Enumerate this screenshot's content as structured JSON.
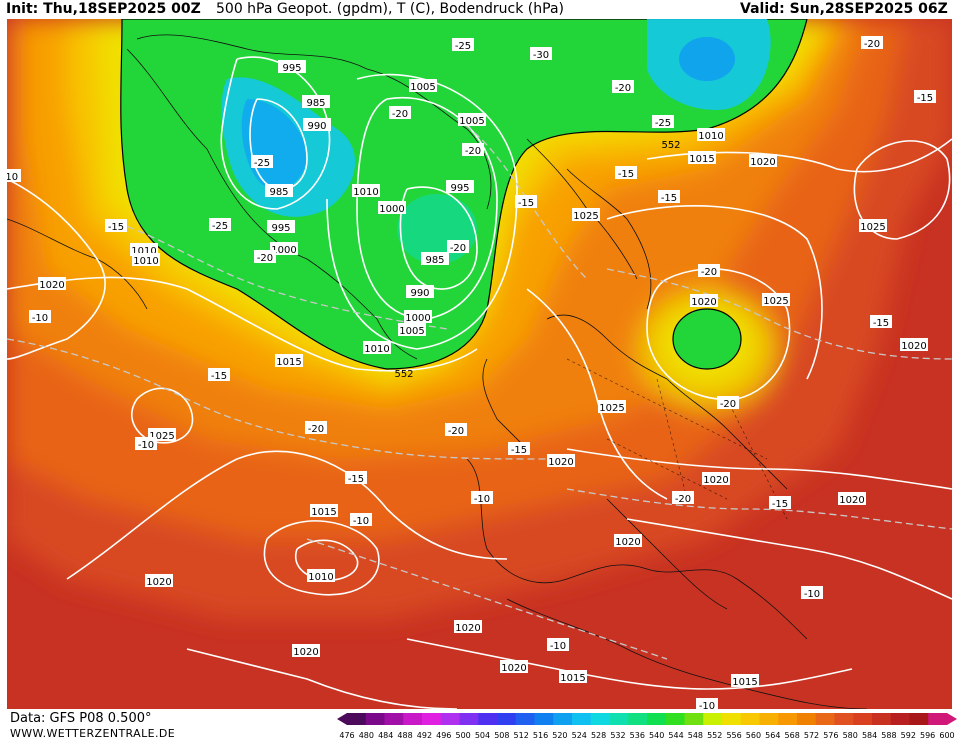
{
  "header": {
    "init": "Init: Thu,18SEP2025 00Z",
    "title": "500 hPa Geopot. (gpdm), T (C), Bodendruck (hPa)",
    "valid": "Valid: Sun,28SEP2025 06Z"
  },
  "footer": {
    "data_source": "Data: GFS P08 0.500°",
    "website": "WWW.WETTERZENTRALE.DE"
  },
  "colorbar": {
    "ticks": [
      "476",
      "480",
      "484",
      "488",
      "492",
      "496",
      "500",
      "504",
      "508",
      "512",
      "516",
      "520",
      "524",
      "528",
      "532",
      "536",
      "540",
      "544",
      "548",
      "552",
      "556",
      "560",
      "564",
      "568",
      "572",
      "576",
      "580",
      "584",
      "588",
      "592",
      "596",
      "600"
    ],
    "colors": [
      "#4b0a5a",
      "#7a0a8a",
      "#a010a8",
      "#c818c8",
      "#e020e0",
      "#b030f0",
      "#8030f0",
      "#5030f0",
      "#3040f0",
      "#2060f0",
      "#1080f0",
      "#10a0f0",
      "#10c0f0",
      "#10d8e0",
      "#10e0b0",
      "#10e080",
      "#10e050",
      "#30e020",
      "#70e010",
      "#c8f000",
      "#f0e000",
      "#f8c800",
      "#f8b000",
      "#f89800",
      "#f08000",
      "#e86818",
      "#e05020",
      "#d84020",
      "#c83020",
      "#b82020",
      "#a81818",
      "#d01878"
    ]
  },
  "pressure_labels": [
    "995",
    "1005",
    "990",
    "985",
    "995",
    "985",
    "1010",
    "1000",
    "995",
    "1000",
    "985",
    "1005",
    "1010",
    "990",
    "1000",
    "1005",
    "1010",
    "1015",
    "1010",
    "1020",
    "1025",
    "1020",
    "1025",
    "1015",
    "1020",
    "1025",
    "1025",
    "1020",
    "1010",
    "1015",
    "1020",
    "1020",
    "1020",
    "1020",
    "1020",
    "1015",
    "1015",
    "1020",
    "1025",
    "1010",
    "1020",
    "1020",
    "1015",
    "1020",
    "1020",
    "1020"
  ],
  "temperature_labels": [
    "-25",
    "-30",
    "-20",
    "-25",
    "-20",
    "-25",
    "-25",
    "-15",
    "-20",
    "-15",
    "-20",
    "-15",
    "-20",
    "-10",
    "-15",
    "-15",
    "-20",
    "-20",
    "-15",
    "-20",
    "-15",
    "-20",
    "-10",
    "-15",
    "-10",
    "-10",
    "-20",
    "-15",
    "-20",
    "-15",
    "-10",
    "-10",
    "-15",
    "-15",
    "-10",
    "-10"
  ],
  "geopotential_labels": [
    "552",
    "552"
  ]
}
